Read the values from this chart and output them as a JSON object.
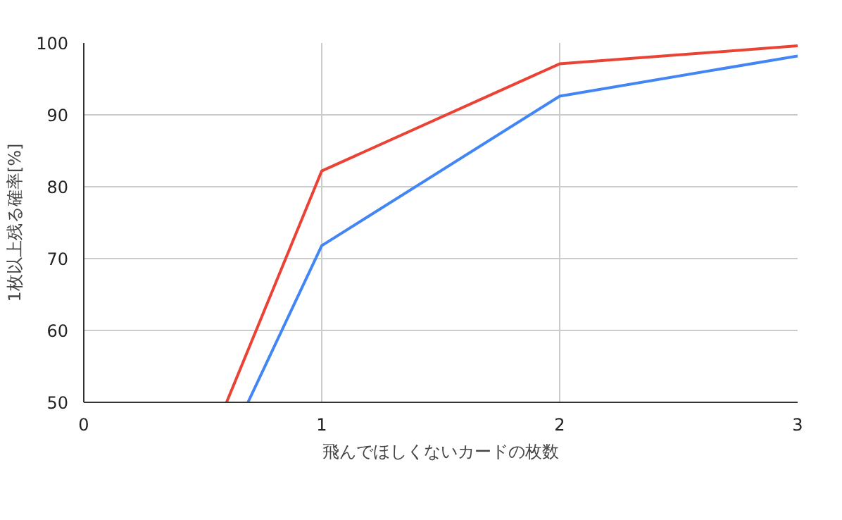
{
  "chart_data": {
    "type": "line",
    "xlabel": "飛んでほしくないカードの枚数",
    "ylabel": "1枚以上残る確率[%]",
    "xlim": [
      0,
      3
    ],
    "xticks": [
      0,
      1,
      2,
      3
    ],
    "ylim": [
      50,
      100
    ],
    "yticks": [
      50,
      60,
      70,
      80,
      90,
      100
    ],
    "grid": true,
    "line_style": "solid",
    "series": [
      {
        "color": "#4285f4",
        "x": [
          0.69,
          1,
          2,
          3
        ],
        "values": [
          50,
          71.8,
          92.6,
          98.2
        ]
      },
      {
        "color": "#ea4335",
        "x": [
          0.6,
          1,
          2,
          3
        ],
        "values": [
          50,
          82.2,
          97.1,
          99.6
        ]
      }
    ]
  }
}
